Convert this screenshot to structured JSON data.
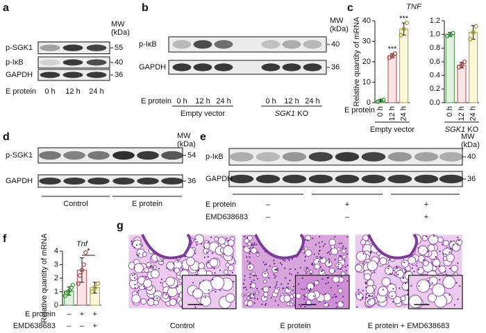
{
  "panels": {
    "a": {
      "label": "a",
      "mw_label": "MW",
      "mw_unit": "(kDa)",
      "rows": [
        {
          "name": "p-SGK1",
          "mw": 55
        },
        {
          "name": "p-IκB",
          "mw": 40
        },
        {
          "name": "GAPDH",
          "mw": 36
        }
      ],
      "condition": "E protein",
      "lanes": [
        "0 h",
        "12 h",
        "24 h"
      ]
    },
    "b": {
      "label": "b",
      "mw_label": "MW",
      "mw_unit": "(kDa)",
      "rows": [
        {
          "name": "p-IκB",
          "mw": 40
        },
        {
          "name": "GAPDH",
          "mw": 36
        }
      ],
      "condition": "E protein",
      "lanes": [
        "0 h",
        "12 h",
        "24 h",
        "0 h",
        "12 h",
        "24 h"
      ],
      "groups": [
        {
          "name": "Empty vector"
        },
        {
          "name": "SGK1",
          "suffix": "KO"
        }
      ]
    },
    "c": {
      "label": "c",
      "title": "TNF",
      "condition": "E protein",
      "groups": [
        {
          "name": "Empty vector"
        },
        {
          "name": "SGK1",
          "suffix": "KO"
        }
      ]
    },
    "d": {
      "label": "d",
      "mw_label": "MW",
      "mw_unit": "(kDa)",
      "rows": [
        {
          "name": "p-SGK1",
          "mw": 54
        },
        {
          "name": "GAPDH",
          "mw": 36
        }
      ],
      "groups": [
        {
          "name": "Control"
        },
        {
          "name": "E protein"
        }
      ]
    },
    "e": {
      "label": "e",
      "mw_label": "MW",
      "mw_unit": "(kDa)",
      "rows": [
        {
          "name": "p-IκB",
          "mw": 40
        },
        {
          "name": "GAPDH",
          "mw": 36
        }
      ],
      "conditions": [
        {
          "name": "E protein",
          "signs": [
            "–",
            "+",
            "+"
          ]
        },
        {
          "name": "EMD638683",
          "signs": [
            "–",
            "–",
            "+"
          ]
        }
      ]
    },
    "f": {
      "label": "f"
    },
    "g": {
      "label": "g",
      "captions": [
        "Control",
        "E protein",
        "E protein + EMD638683"
      ]
    }
  },
  "chart_data": [
    {
      "type": "bar",
      "ylabel": "Relative quantity of mRNA",
      "categories": [
        "0 h",
        "12 h",
        "24 h"
      ],
      "values": [
        1,
        23,
        36
      ],
      "errors": [
        0.5,
        1,
        3
      ],
      "points": [
        [
          0.5,
          1,
          1.3
        ],
        [
          22,
          23,
          24
        ],
        [
          33,
          36,
          39
        ]
      ],
      "annotations": [
        null,
        "***",
        "***"
      ],
      "colors": [
        "#dff3df",
        "#fbe3e6",
        "#fbf7d8"
      ],
      "edge_colors": [
        "#3f9b3f",
        "#b0443f",
        "#a89a2a"
      ],
      "ylim": [
        0,
        40
      ],
      "yticks": [
        0,
        10,
        20,
        30,
        40
      ]
    },
    {
      "type": "bar",
      "categories": [
        "0 h",
        "12 h",
        "24 h"
      ],
      "values": [
        1.0,
        0.55,
        1.03
      ],
      "errors": [
        0.03,
        0.04,
        0.1
      ],
      "points": [
        [
          0.98,
          1.0,
          1.02
        ],
        [
          0.52,
          0.55,
          0.6
        ],
        [
          0.93,
          1.03,
          1.12
        ]
      ],
      "colors": [
        "#dff3df",
        "#fbe3e6",
        "#fbf7d8"
      ],
      "edge_colors": [
        "#3f9b3f",
        "#b0443f",
        "#a89a2a"
      ],
      "ylim": [
        0,
        1.2
      ],
      "yticks": [
        {
          "value": 0,
          "label": "0.0"
        },
        0.2,
        0.4,
        0.6,
        0.8,
        {
          "value": 1,
          "label": "1.0"
        },
        1.2
      ]
    },
    {
      "type": "bar",
      "title": "Tnf",
      "ylabel": "Relative quantity of mRNA",
      "values": [
        1.05,
        2.6,
        1.3
      ],
      "errors": [
        0.3,
        0.9,
        0.4
      ],
      "points": [
        [
          0.7,
          0.9,
          1.0,
          1.1,
          1.3,
          1.5
        ],
        [
          1.6,
          2.2,
          2.6,
          3.0,
          3.9
        ],
        [
          1.0,
          1.3,
          1.6
        ]
      ],
      "bracket_label": "*",
      "conditions": [
        {
          "name": "E protein",
          "signs": [
            "–",
            "+",
            "+"
          ]
        },
        {
          "name": "EMD638683",
          "signs": [
            "–",
            "–",
            "+"
          ]
        }
      ],
      "colors": [
        "#dff3df",
        "#fbe3e6",
        "#fbf7d8"
      ],
      "edge_colors": [
        "#3f9b3f",
        "#b0443f",
        "#a89a2a"
      ],
      "ylim": [
        0,
        4
      ],
      "yticks": [
        0,
        1,
        2,
        3,
        4
      ]
    }
  ]
}
